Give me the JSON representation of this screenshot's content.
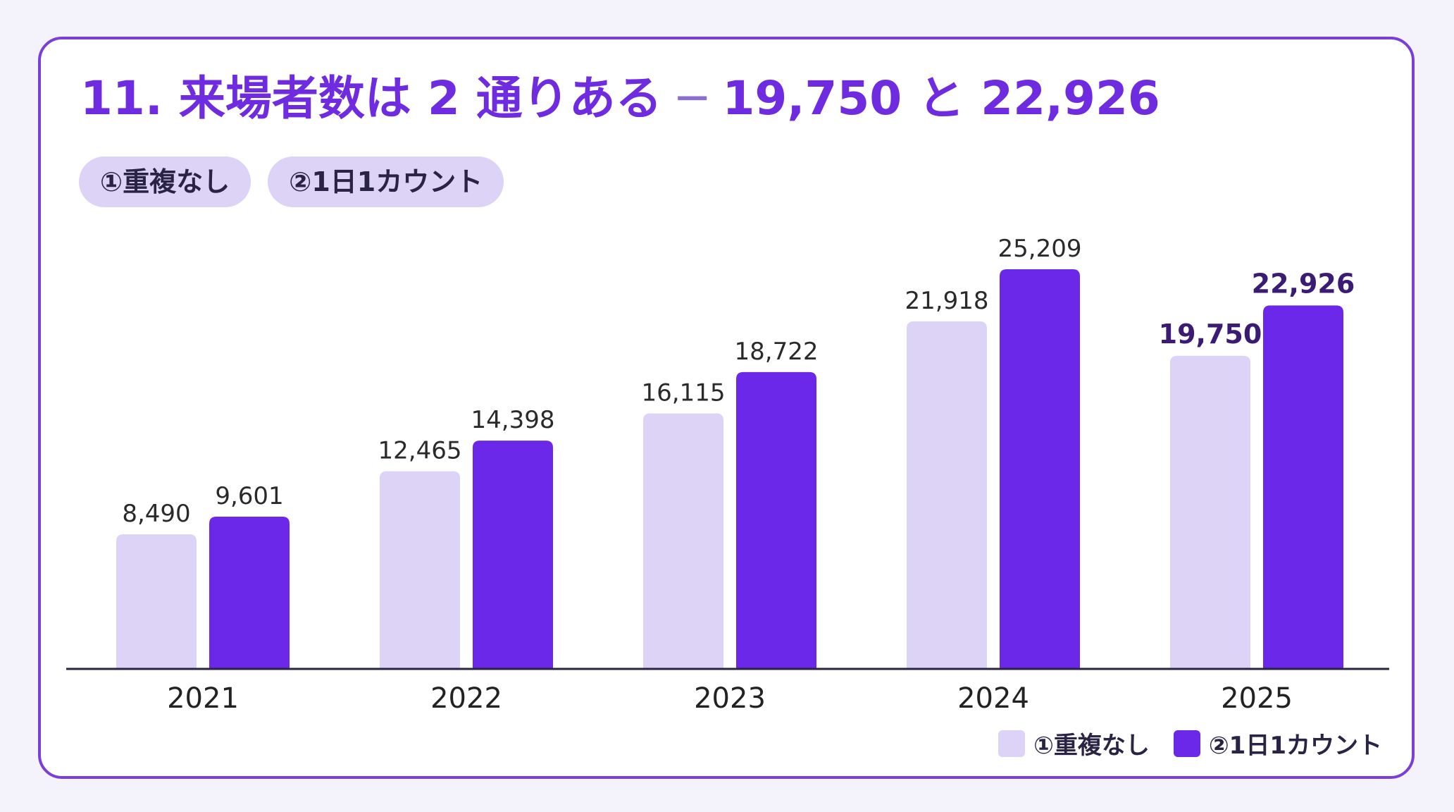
{
  "title": {
    "prefix": "11. 来場者数は 2 通りある",
    "dash": " ─ ",
    "value_a": "19,750",
    "connector": " と ",
    "value_b": "22,926"
  },
  "pills": [
    "①重複なし",
    "②1日1カウント"
  ],
  "colors": {
    "title": "#6f2be0",
    "dash": "#8a6fd1",
    "series_light": "#dcd3f7",
    "series_dark": "#6c28e8",
    "axis": "#2a2344"
  },
  "chart_data": {
    "type": "bar",
    "categories": [
      "2021",
      "2022",
      "2023",
      "2024",
      "2025"
    ],
    "series": [
      {
        "name": "①重複なし",
        "values": [
          8490,
          12465,
          16115,
          21918,
          19750
        ],
        "labels": [
          "8,490",
          "12,465",
          "16,115",
          "21,918",
          "19,750"
        ]
      },
      {
        "name": "②1日1カウント",
        "values": [
          9601,
          14398,
          18722,
          25209,
          22926
        ],
        "labels": [
          "9,601",
          "14,398",
          "18,722",
          "25,209",
          "22,926"
        ]
      }
    ],
    "highlight_category": "2025",
    "ylim": [
      0,
      25209
    ],
    "grid": false,
    "legend": "bottom-right"
  }
}
